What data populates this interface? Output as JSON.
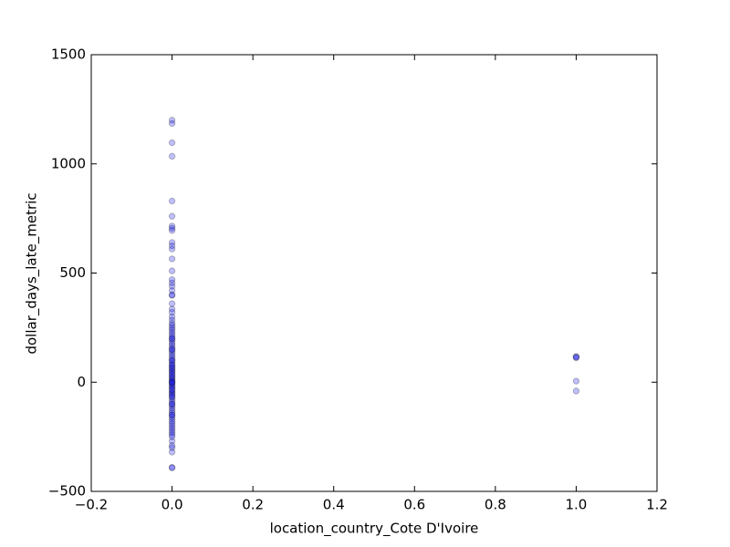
{
  "chart_data": {
    "type": "scatter",
    "xlabel": "location_country_Cote D'Ivoire",
    "ylabel": "dollar_days_late_metric",
    "color": "#0000ff",
    "alpha": 0.25,
    "xlim": [
      -0.2,
      1.2
    ],
    "ylim": [
      -500,
      1500
    ],
    "xticks": [
      {
        "value": -0.2,
        "label": "−0.2"
      },
      {
        "value": 0,
        "label": "0.0"
      },
      0.2,
      0.4,
      0.6,
      0.8,
      {
        "value": 1,
        "label": "1.0"
      },
      1.2
    ],
    "yticks": [
      {
        "value": -500,
        "label": "−500"
      },
      0,
      500,
      1000,
      1500
    ],
    "x": [
      0,
      0,
      0,
      0,
      0,
      0,
      0,
      0,
      0,
      0,
      0,
      0,
      0,
      0,
      0,
      0,
      0,
      0,
      0,
      0,
      0,
      0,
      0,
      0,
      0,
      0,
      0,
      0,
      0,
      0,
      0,
      0,
      0,
      0,
      0,
      0,
      0,
      0,
      0,
      0,
      0,
      0,
      0,
      0,
      0,
      0,
      0,
      0,
      0,
      0,
      0,
      0,
      0,
      0,
      0,
      0,
      0,
      0,
      0,
      0,
      0,
      0,
      0,
      0,
      0,
      0,
      0,
      0,
      0,
      0,
      0,
      0,
      0,
      0,
      0,
      0,
      0,
      0,
      0,
      0,
      0,
      0,
      0,
      0,
      0,
      0,
      0,
      0,
      0,
      0,
      0,
      0,
      0,
      0,
      0,
      0,
      0,
      0,
      0,
      0,
      0,
      1,
      1,
      1,
      1,
      1
    ],
    "values": [
      1200,
      1185,
      1097,
      1035,
      830,
      760,
      715,
      705,
      695,
      640,
      625,
      610,
      565,
      510,
      470,
      455,
      440,
      420,
      400,
      398,
      360,
      335,
      320,
      300,
      285,
      270,
      260,
      250,
      240,
      230,
      220,
      210,
      200,
      190,
      180,
      170,
      160,
      150,
      140,
      130,
      120,
      110,
      100,
      90,
      80,
      70,
      60,
      50,
      40,
      30,
      20,
      10,
      0,
      -10,
      -20,
      -30,
      -40,
      -50,
      -60,
      -70,
      -80,
      -90,
      -100,
      -110,
      -120,
      -130,
      -140,
      -150,
      -160,
      -170,
      -180,
      -190,
      -200,
      -210,
      -220,
      -230,
      -240,
      -250,
      100,
      80,
      50,
      20,
      0,
      -20,
      -50,
      -100,
      150,
      200,
      -150,
      5,
      -5,
      35,
      -35,
      65,
      -65,
      -270,
      -290,
      -300,
      -320,
      -390,
      -392,
      118,
      115,
      112,
      5,
      -40
    ]
  }
}
